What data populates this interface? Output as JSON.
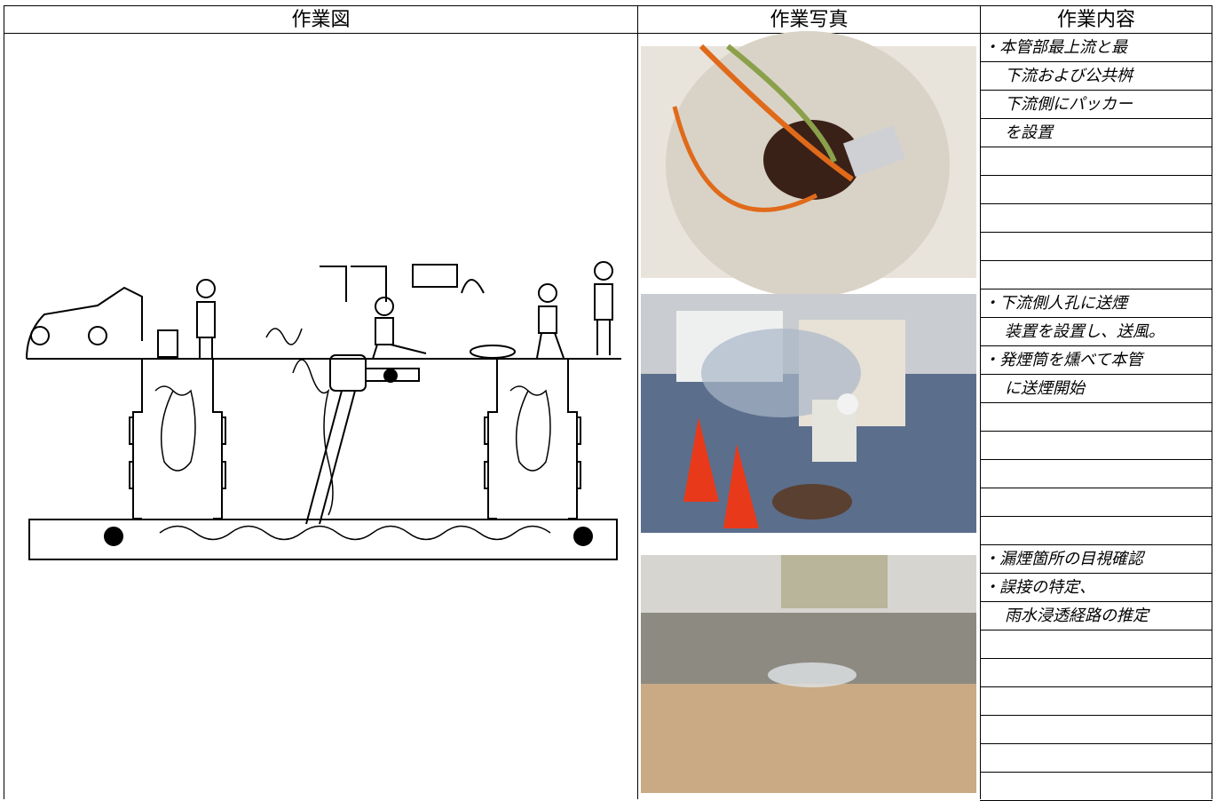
{
  "header": {
    "columns": [
      "作業図",
      "作業写真",
      "作業内容"
    ]
  },
  "sections": [
    {
      "lines": [
        "・本管部最上流と最",
        "下流および公共桝",
        "下流側にパッカー",
        "を設置"
      ]
    },
    {
      "lines": [
        "・下流側人孔に送煙",
        "装置を設置し、送風。",
        "・発煙筒を燻べて本管",
        "に送煙開始"
      ]
    },
    {
      "lines": [
        "・漏煙箇所の目視確認",
        "・誤接の特定、",
        "雨水浸透経路の推定"
      ]
    }
  ]
}
